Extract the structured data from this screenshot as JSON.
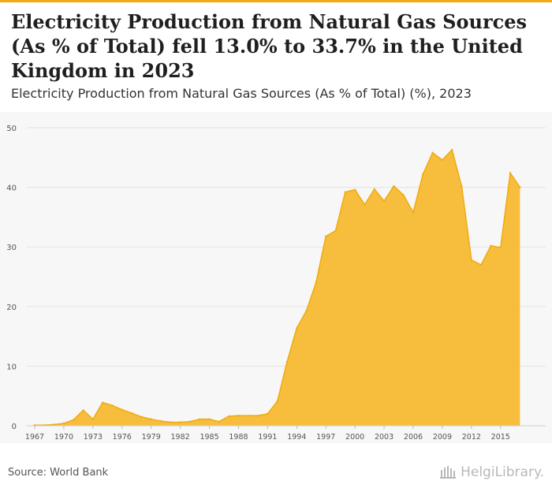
{
  "header": {
    "title": "Electricity Production from Natural Gas Sources (As % of Total) fell 13.0% to 33.7% in the United Kingdom in 2023",
    "subtitle": "Electricity Production from Natural Gas Sources (As % of Total) (%), 2023"
  },
  "footer": {
    "source": "Source: World Bank",
    "logo_text": "HelgiLibrary."
  },
  "colors": {
    "accent": "#f3a712",
    "area_fill": "#f7bd3d",
    "area_stroke": "#f0aa10",
    "plot_background": "#f7f7f7",
    "grid": "#e3e3e3"
  },
  "chart_data": {
    "type": "area",
    "title": "",
    "xlabel": "",
    "ylabel": "",
    "ylim": [
      0,
      50
    ],
    "yticks": [
      0,
      10,
      20,
      30,
      40,
      50
    ],
    "xlim": [
      1967,
      2019
    ],
    "xticks": [
      1967,
      1970,
      1973,
      1976,
      1979,
      1982,
      1985,
      1988,
      1991,
      1994,
      1997,
      2000,
      2003,
      2006,
      2009,
      2012,
      2015
    ],
    "grid": true,
    "legend": "none",
    "x": [
      1967,
      1968,
      1969,
      1970,
      1971,
      1972,
      1973,
      1974,
      1975,
      1976,
      1977,
      1978,
      1979,
      1980,
      1981,
      1982,
      1983,
      1984,
      1985,
      1986,
      1987,
      1988,
      1989,
      1990,
      1991,
      1992,
      1993,
      1994,
      1995,
      1996,
      1997,
      1998,
      1999,
      2000,
      2001,
      2002,
      2003,
      2004,
      2005,
      2006,
      2007,
      2008,
      2009,
      2010,
      2011,
      2012,
      2013,
      2014,
      2015,
      2016,
      2017
    ],
    "series": [
      {
        "values": [
          0.1,
          0.1,
          0.2,
          0.4,
          1.0,
          2.6,
          1.1,
          3.9,
          3.4,
          2.7,
          2.1,
          1.5,
          1.1,
          0.8,
          0.6,
          0.6,
          0.7,
          1.1,
          1.1,
          0.7,
          1.6,
          1.7,
          1.7,
          1.7,
          2.0,
          4.1,
          10.7,
          16.4,
          19.3,
          24.1,
          31.8,
          32.7,
          39.2,
          39.6,
          37.1,
          39.7,
          37.7,
          40.2,
          38.7,
          35.8,
          42.2,
          45.8,
          44.6,
          46.3,
          40.1,
          27.8,
          27.0,
          30.2,
          29.9,
          42.4,
          40.0
        ]
      }
    ]
  }
}
